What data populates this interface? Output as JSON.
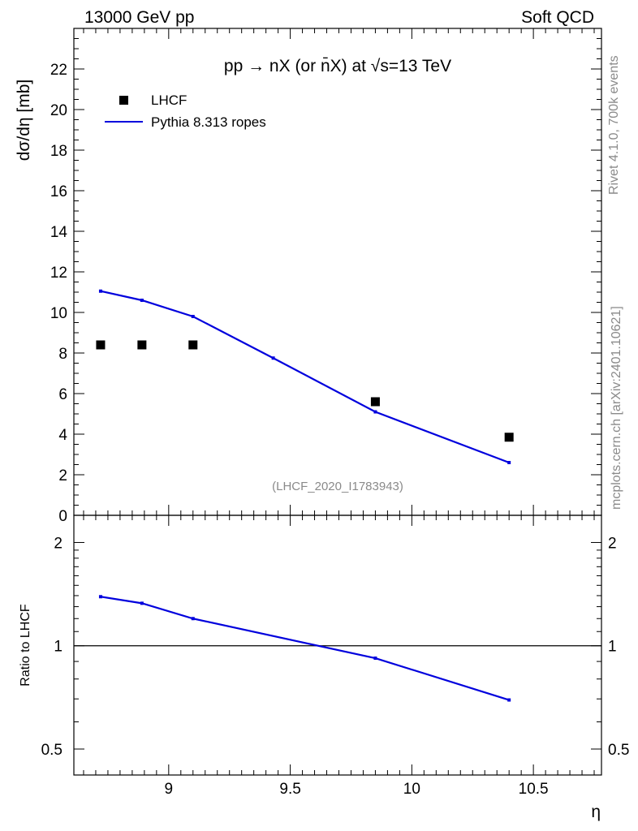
{
  "header": {
    "energy_label": "13000 GeV pp",
    "category_label": "Soft QCD"
  },
  "side_text": {
    "rivet": "Rivet 4.1.0,  700k events",
    "source": "mcplots.cern.ch [arXiv:2401.10621]"
  },
  "chart_data": [
    {
      "type": "scatter",
      "panel": "main",
      "title": "pp → nX (or n̄X) at √s=13 TeV",
      "analysis_id": "(LHCF_2020_I1783943)",
      "xlabel": "η",
      "ylabel": "dσ/dη [mb]",
      "xlim": [
        8.61,
        10.78
      ],
      "ylim": [
        0,
        24
      ],
      "x_ticks": [
        9,
        9.5,
        10,
        10.5
      ],
      "y_ticks": [
        0,
        2,
        4,
        6,
        8,
        10,
        12,
        14,
        16,
        18,
        20,
        22
      ],
      "y_tick_labels": [
        "0",
        "2",
        "4",
        "6",
        "8",
        "10",
        "12",
        "14",
        "16",
        "18",
        "20",
        "22"
      ],
      "legend_position": "top-left",
      "series": [
        {
          "name": "LHCF",
          "style": "markers",
          "color": "#000000",
          "x": [
            8.72,
            8.89,
            9.1,
            9.85,
            10.4
          ],
          "y": [
            8.4,
            8.4,
            8.4,
            5.6,
            3.85
          ]
        },
        {
          "name": "Pythia 8.313 ropes",
          "style": "line",
          "color": "#0000dd",
          "x": [
            8.72,
            8.89,
            9.1,
            9.43,
            9.85,
            10.4
          ],
          "y": [
            11.05,
            10.6,
            9.8,
            7.75,
            5.1,
            2.6
          ]
        }
      ]
    },
    {
      "type": "line",
      "panel": "ratio",
      "ylabel": "Ratio to LHCF",
      "xlabel": "η",
      "scale": "log",
      "ylim": [
        0.42,
        2.4
      ],
      "reference_line": 1,
      "y_ticks": [
        0.5,
        1,
        2
      ],
      "y_tick_labels": [
        "0.5",
        "1",
        "2"
      ],
      "x_ticks": [
        9,
        9.5,
        10,
        10.5
      ],
      "x_tick_labels": [
        "9",
        "9.5",
        "10",
        "10.5"
      ],
      "series": [
        {
          "name": "Pythia 8.313 ropes",
          "color": "#0000dd",
          "x": [
            8.72,
            8.89,
            9.1,
            9.85,
            10.4
          ],
          "y": [
            1.39,
            1.33,
            1.2,
            0.92,
            0.695
          ]
        }
      ]
    }
  ]
}
